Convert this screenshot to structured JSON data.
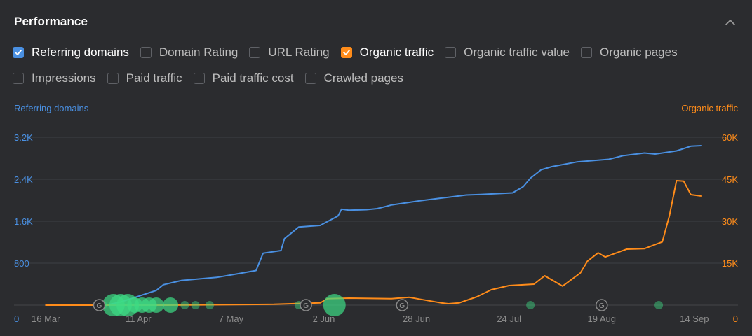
{
  "panel": {
    "title": "Performance"
  },
  "options": [
    [
      {
        "label": "Referring domains",
        "checked": true,
        "color": "#4a90e2"
      },
      {
        "label": "Domain Rating",
        "checked": false
      },
      {
        "label": "URL Rating",
        "checked": false
      },
      {
        "label": "Organic traffic",
        "checked": true,
        "color": "#ff8c1a"
      },
      {
        "label": "Organic traffic value",
        "checked": false
      },
      {
        "label": "Organic pages",
        "checked": false
      }
    ],
    [
      {
        "label": "Impressions",
        "checked": false
      },
      {
        "label": "Paid traffic",
        "checked": false
      },
      {
        "label": "Paid traffic cost",
        "checked": false
      },
      {
        "label": "Crawled pages",
        "checked": false
      }
    ]
  ],
  "colors": {
    "referring": "#4a90e2",
    "organic": "#ff8c1a",
    "grid": "#3e4044",
    "axis_text": "#8c8c8c",
    "marker_google": "#8a8a8a",
    "marker_bubble": "#3ddc84"
  },
  "chart_data": {
    "type": "line",
    "x_range": [
      "2024-03-13",
      "2024-09-16"
    ],
    "xticks": [
      {
        "label": "16 Mar",
        "date": "2024-03-16"
      },
      {
        "label": "11 Apr",
        "date": "2024-04-11"
      },
      {
        "label": "7 May",
        "date": "2024-05-07"
      },
      {
        "label": "2 Jun",
        "date": "2024-06-02"
      },
      {
        "label": "28 Jun",
        "date": "2024-06-28"
      },
      {
        "label": "24 Jul",
        "date": "2024-07-24"
      },
      {
        "label": "19 Aug",
        "date": "2024-08-19"
      },
      {
        "label": "14 Sep",
        "date": "2024-09-14"
      }
    ],
    "y_left": {
      "title": "Referring domains",
      "range": [
        0,
        3200
      ],
      "ticks": [
        {
          "label": "0",
          "value": 0
        },
        {
          "label": "800",
          "value": 800
        },
        {
          "label": "1.6K",
          "value": 1600
        },
        {
          "label": "2.4K",
          "value": 2400
        },
        {
          "label": "3.2K",
          "value": 3200
        }
      ]
    },
    "y_right": {
      "title": "Organic traffic",
      "range": [
        0,
        60000
      ],
      "ticks": [
        {
          "label": "0",
          "value": 0
        },
        {
          "label": "15K",
          "value": 15000
        },
        {
          "label": "30K",
          "value": 30000
        },
        {
          "label": "45K",
          "value": 45000
        },
        {
          "label": "60K",
          "value": 60000
        }
      ]
    },
    "grid": true,
    "series": [
      {
        "name": "Referring domains",
        "axis": "left",
        "color": "#4a90e2",
        "points": [
          [
            "2024-04-02",
            0
          ],
          [
            "2024-04-06",
            60
          ],
          [
            "2024-04-11",
            170
          ],
          [
            "2024-04-16",
            280
          ],
          [
            "2024-04-18",
            390
          ],
          [
            "2024-04-23",
            470
          ],
          [
            "2024-05-03",
            530
          ],
          [
            "2024-05-09",
            600
          ],
          [
            "2024-05-14",
            660
          ],
          [
            "2024-05-16",
            990
          ],
          [
            "2024-05-21",
            1040
          ],
          [
            "2024-05-22",
            1270
          ],
          [
            "2024-05-26",
            1490
          ],
          [
            "2024-05-28",
            1500
          ],
          [
            "2024-06-01",
            1520
          ],
          [
            "2024-06-06",
            1700
          ],
          [
            "2024-06-07",
            1830
          ],
          [
            "2024-06-09",
            1810
          ],
          [
            "2024-06-14",
            1820
          ],
          [
            "2024-06-17",
            1840
          ],
          [
            "2024-06-21",
            1910
          ],
          [
            "2024-06-29",
            1990
          ],
          [
            "2024-07-06",
            2050
          ],
          [
            "2024-07-12",
            2100
          ],
          [
            "2024-07-16",
            2110
          ],
          [
            "2024-07-25",
            2140
          ],
          [
            "2024-07-28",
            2260
          ],
          [
            "2024-07-30",
            2420
          ],
          [
            "2024-08-02",
            2580
          ],
          [
            "2024-08-05",
            2640
          ],
          [
            "2024-08-12",
            2730
          ],
          [
            "2024-08-21",
            2780
          ],
          [
            "2024-08-25",
            2850
          ],
          [
            "2024-08-31",
            2900
          ],
          [
            "2024-09-03",
            2880
          ],
          [
            "2024-09-09",
            2940
          ],
          [
            "2024-09-13",
            3030
          ],
          [
            "2024-09-16",
            3040
          ]
        ]
      },
      {
        "name": "Organic traffic",
        "axis": "right",
        "color": "#ff8c1a",
        "points": [
          [
            "2024-03-16",
            0
          ],
          [
            "2024-04-19",
            0
          ],
          [
            "2024-05-19",
            300
          ],
          [
            "2024-06-01",
            800
          ],
          [
            "2024-06-03",
            2300
          ],
          [
            "2024-06-09",
            2500
          ],
          [
            "2024-06-21",
            2300
          ],
          [
            "2024-06-26",
            2800
          ],
          [
            "2024-07-05",
            800
          ],
          [
            "2024-07-07",
            500
          ],
          [
            "2024-07-10",
            800
          ],
          [
            "2024-07-15",
            3000
          ],
          [
            "2024-07-19",
            5500
          ],
          [
            "2024-07-24",
            7000
          ],
          [
            "2024-07-31",
            7500
          ],
          [
            "2024-08-03",
            10500
          ],
          [
            "2024-08-08",
            6800
          ],
          [
            "2024-08-13",
            11500
          ],
          [
            "2024-08-15",
            15700
          ],
          [
            "2024-08-18",
            18700
          ],
          [
            "2024-08-20",
            17200
          ],
          [
            "2024-08-26",
            20000
          ],
          [
            "2024-08-31",
            20200
          ],
          [
            "2024-09-05",
            22600
          ],
          [
            "2024-09-07",
            32000
          ],
          [
            "2024-09-09",
            44500
          ],
          [
            "2024-09-11",
            44300
          ],
          [
            "2024-09-13",
            39500
          ],
          [
            "2024-09-16",
            39000
          ]
        ]
      }
    ],
    "annotations": {
      "google_updates": [
        "2024-03-31",
        "2024-05-28",
        "2024-06-24",
        "2024-08-19"
      ],
      "bubbles": [
        {
          "date": "2024-04-01",
          "size": 1
        },
        {
          "date": "2024-04-04",
          "size": 3
        },
        {
          "date": "2024-04-06",
          "size": 3
        },
        {
          "date": "2024-04-08",
          "size": 3
        },
        {
          "date": "2024-04-10",
          "size": 2
        },
        {
          "date": "2024-04-12",
          "size": 2
        },
        {
          "date": "2024-04-14",
          "size": 2
        },
        {
          "date": "2024-04-16",
          "size": 2
        },
        {
          "date": "2024-04-20",
          "size": 2
        },
        {
          "date": "2024-04-24",
          "size": 1
        },
        {
          "date": "2024-04-27",
          "size": 1
        },
        {
          "date": "2024-05-01",
          "size": 1
        },
        {
          "date": "2024-05-26",
          "size": 1
        },
        {
          "date": "2024-06-05",
          "size": 3
        },
        {
          "date": "2024-07-30",
          "size": 1
        },
        {
          "date": "2024-09-04",
          "size": 1
        }
      ]
    }
  }
}
